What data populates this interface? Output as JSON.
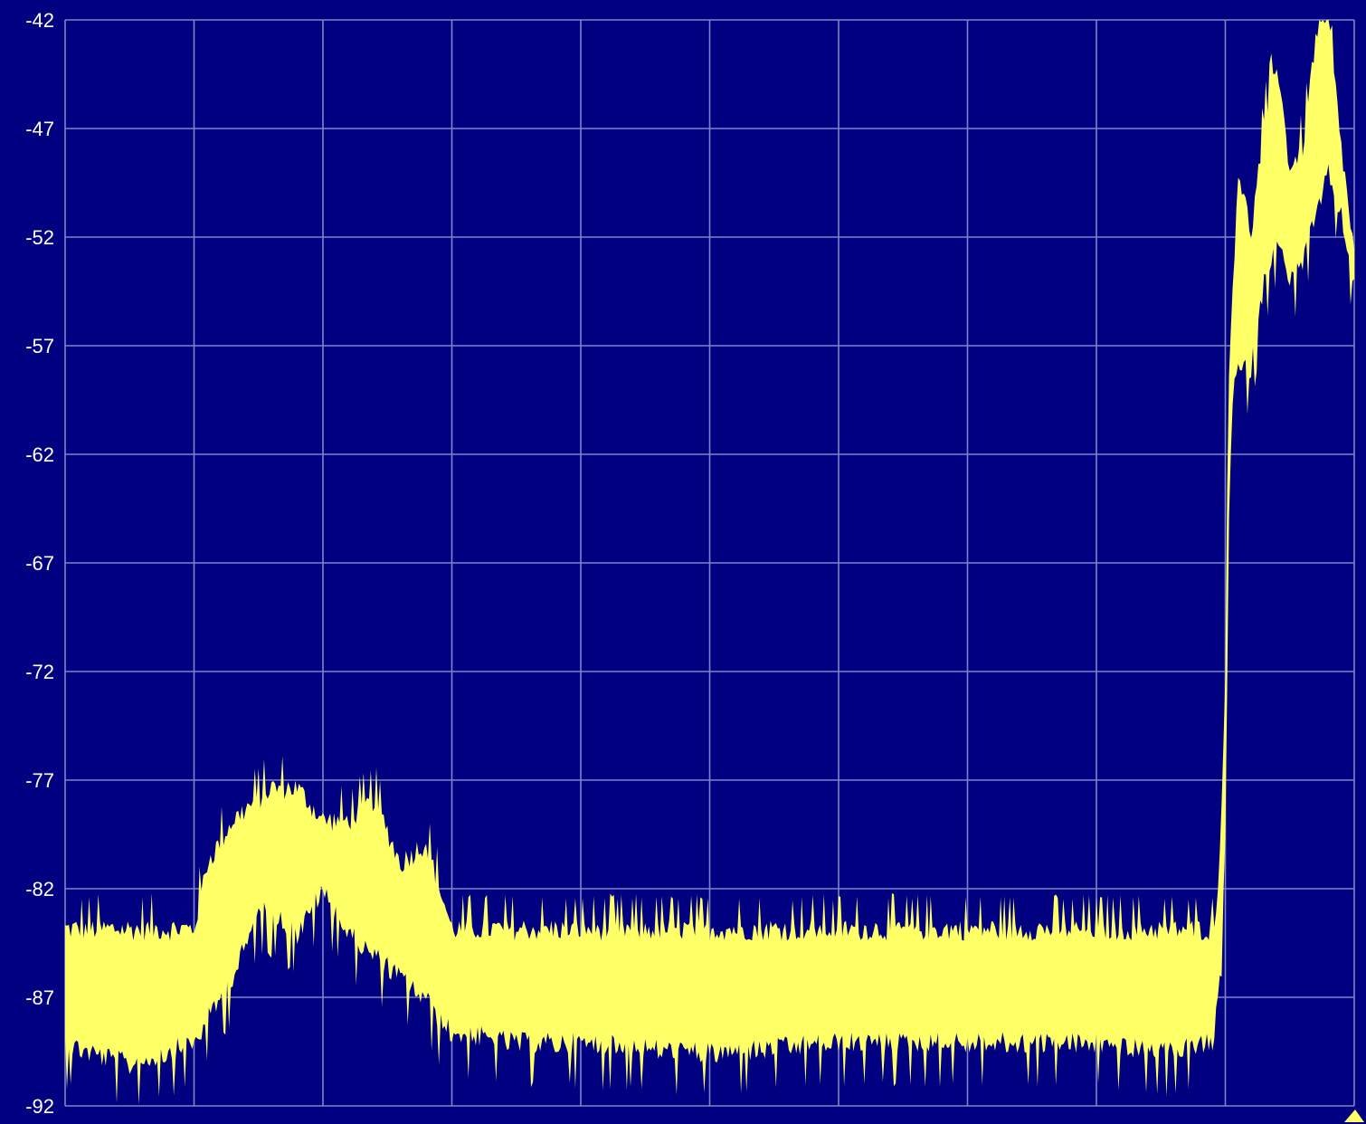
{
  "colors": {
    "background": "#000080",
    "grid": "#7f84c8",
    "trace": "#ffff66",
    "tick_text": "#ffffff"
  },
  "chart_data": {
    "type": "area",
    "title": "",
    "xlabel": "",
    "ylabel": "",
    "ylim": [
      -92,
      -42
    ],
    "xlim": [
      0,
      10
    ],
    "grid": true,
    "y_ticks": [
      -42,
      -47,
      -52,
      -57,
      -62,
      -67,
      -72,
      -77,
      -82,
      -87,
      -92
    ],
    "y_tick_labels": [
      "-42",
      "-47",
      "-52",
      "-57",
      "-62",
      "-67",
      "-72",
      "-77",
      "-82",
      "-87",
      "-92"
    ],
    "x_gridlines": 9,
    "series": [
      {
        "x": [
          0,
          0.5,
          1.0,
          1.1,
          1.3,
          1.5,
          1.6,
          1.8,
          2.0,
          2.2,
          2.4,
          2.6,
          2.8,
          2.9,
          3.0,
          3.5,
          4,
          5,
          6,
          7,
          8,
          8.5,
          8.9,
          8.95,
          9.0,
          9.03,
          9.06,
          9.1,
          9.2,
          9.3,
          9.4,
          9.5,
          9.6,
          9.7,
          9.8,
          9.9,
          10.0
        ],
        "upper": [
          -84,
          -84,
          -84,
          -81,
          -79,
          -78,
          -77.5,
          -77.5,
          -79,
          -79,
          -78,
          -81,
          -80,
          -82,
          -84,
          -84,
          -84,
          -84,
          -84,
          -84,
          -84,
          -84,
          -84,
          -82,
          -72,
          -58,
          -54,
          -49,
          -52,
          -47,
          -44,
          -49,
          -48,
          -43,
          -42,
          -48,
          -53
        ],
        "lower": [
          -89,
          -90,
          -89,
          -88,
          -86,
          -83,
          -83,
          -84,
          -82,
          -84,
          -85,
          -86,
          -87,
          -88,
          -88.5,
          -89,
          -89,
          -89.5,
          -89,
          -89,
          -89,
          -89.5,
          -89,
          -87,
          -80,
          -64,
          -59,
          -58,
          -58,
          -54,
          -52,
          -54,
          -53,
          -51,
          -49,
          -51,
          -54
        ]
      }
    ]
  }
}
